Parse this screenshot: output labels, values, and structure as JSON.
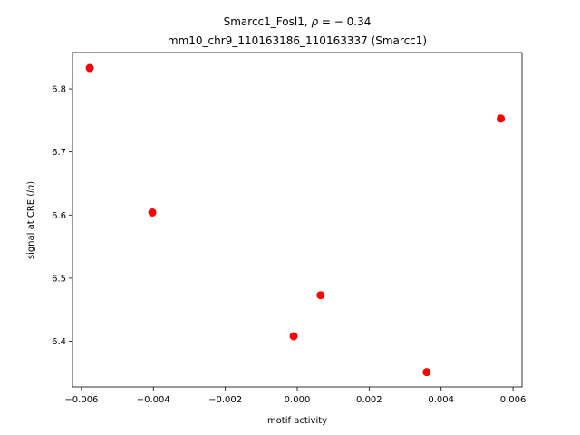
{
  "chart_data": {
    "type": "scatter",
    "title_line1": "Smarcc1_Fosl1, ",
    "title_rho_symbol": "ρ",
    "title_rho_value": " = − 0.34",
    "title_line2": "mm10_chr9_110163186_110163337 (Smarcc1)",
    "xlabel": "motif activity",
    "ylabel_prefix": "signal at CRE (",
    "ylabel_italic": "ln",
    "ylabel_suffix": ")",
    "xlim": [
      -0.00625,
      0.00625
    ],
    "ylim": [
      6.3275,
      6.8575
    ],
    "xticks": [
      -0.006,
      -0.004,
      -0.002,
      0.0,
      0.002,
      0.004,
      0.006
    ],
    "xtick_labels": [
      "−0.006",
      "−0.004",
      "−0.002",
      "0.000",
      "0.002",
      "0.004",
      "0.006"
    ],
    "yticks": [
      6.4,
      6.5,
      6.6,
      6.7,
      6.8
    ],
    "ytick_labels": [
      "6.4",
      "6.5",
      "6.6",
      "6.7",
      "6.8"
    ],
    "marker_color": "#ff0000",
    "grid": false,
    "points": [
      {
        "x": -0.00577,
        "y": 6.833
      },
      {
        "x": -0.00403,
        "y": 6.604
      },
      {
        "x": -0.0001,
        "y": 6.408
      },
      {
        "x": 0.00065,
        "y": 6.473
      },
      {
        "x": 0.0036,
        "y": 6.351
      },
      {
        "x": 0.00566,
        "y": 6.753
      }
    ]
  }
}
